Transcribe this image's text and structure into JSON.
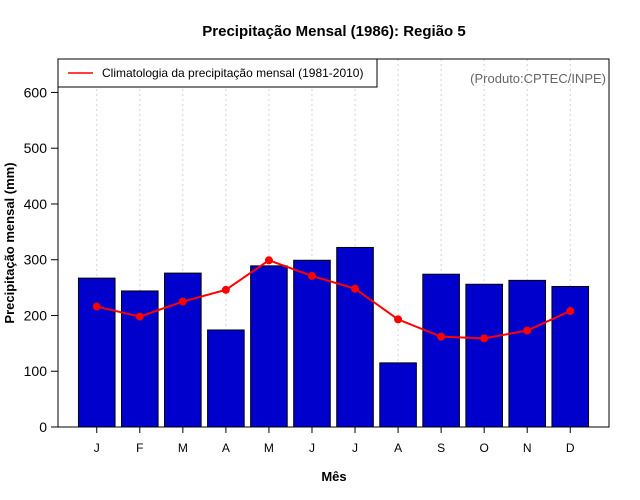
{
  "chart_data": {
    "type": "bar",
    "title": "Precipitação Mensal (1986): Região 5",
    "xlabel": "Mês",
    "ylabel": "Precipitação mensal (mm)",
    "ylim": [
      0,
      660
    ],
    "yticks": [
      0,
      100,
      200,
      300,
      400,
      500,
      600
    ],
    "categories": [
      "J",
      "F",
      "M",
      "A",
      "M",
      "J",
      "J",
      "A",
      "S",
      "O",
      "N",
      "D"
    ],
    "series": [
      {
        "name": "Precipitação mensal (1986)",
        "type": "bar",
        "color": "#0000cd",
        "values": [
          267,
          244,
          276,
          174,
          289,
          299,
          322,
          115,
          274,
          256,
          263,
          252
        ]
      },
      {
        "name": "Climatologia da precipitação mensal (1981-2010)",
        "type": "line",
        "color": "#ff0000",
        "values": [
          216,
          198,
          225,
          246,
          299,
          271,
          248,
          193,
          162,
          159,
          173,
          208
        ]
      }
    ],
    "legend": {
      "position": "top-left",
      "entries": [
        "Climatologia da precipitação mensal (1981-2010)"
      ]
    },
    "annotation": "(Produto:CPTEC/INPE)",
    "grid": {
      "vertical": true,
      "horizontal": false,
      "color": "#d3d3d3"
    }
  }
}
